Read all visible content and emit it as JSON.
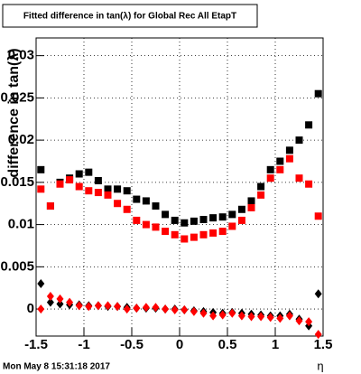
{
  "chart_data": {
    "type": "scatter",
    "title": "Fitted difference in tan(λ) for Global Rec All EtapT",
    "x_label": "η",
    "y_label": "difference in tan(λ)",
    "footer": "Mon May  8 15:31:18 2017",
    "x": [
      -1.45,
      -1.35,
      -1.25,
      -1.15,
      -1.05,
      -0.95,
      -0.85,
      -0.75,
      -0.65,
      -0.55,
      -0.45,
      -0.35,
      -0.25,
      -0.15,
      -0.05,
      0.05,
      0.15,
      0.25,
      0.35,
      0.45,
      0.55,
      0.65,
      0.75,
      0.85,
      0.95,
      1.05,
      1.15,
      1.25,
      1.35,
      1.45
    ],
    "series": [
      {
        "color": "#000000",
        "marker": "square",
        "values": [
          0.0165,
          0.0122,
          0.015,
          0.0155,
          0.016,
          0.0162,
          0.0152,
          0.0142,
          0.0142,
          0.014,
          0.013,
          0.0128,
          0.0122,
          0.0112,
          0.0105,
          0.0102,
          0.0104,
          0.0106,
          0.0108,
          0.0109,
          0.0112,
          0.0118,
          0.0128,
          0.0145,
          0.0165,
          0.0175,
          0.0188,
          0.02,
          0.0218,
          0.0255
        ]
      },
      {
        "color": "#ff0000",
        "marker": "square",
        "values": [
          0.0142,
          0.0122,
          0.0148,
          0.0153,
          0.0145,
          0.014,
          0.0138,
          0.0135,
          0.0125,
          0.0118,
          0.0105,
          0.01,
          0.0097,
          0.0092,
          0.0088,
          0.0083,
          0.0085,
          0.0088,
          0.009,
          0.0092,
          0.0098,
          0.0105,
          0.012,
          0.0135,
          0.0155,
          0.0165,
          0.0178,
          0.0155,
          0.0148,
          0.011
        ]
      },
      {
        "color": "#000000",
        "marker": "diamond",
        "values": [
          0.003,
          0.0008,
          0.0006,
          0.0005,
          0.0005,
          0.0004,
          0.0004,
          0.0003,
          0.0003,
          0.0002,
          0.0001,
          0.0001,
          0.0001,
          0.0,
          0.0,
          -0.0001,
          -0.0002,
          -0.0003,
          -0.0004,
          -0.0005,
          -0.0004,
          -0.0005,
          -0.0006,
          -0.0007,
          -0.0008,
          -0.0008,
          -0.0006,
          -0.0012,
          -0.002,
          0.0018
        ]
      },
      {
        "color": "#ff0000",
        "marker": "diamond",
        "values": [
          0.0,
          0.0015,
          0.0012,
          0.0008,
          0.0004,
          0.0003,
          0.0004,
          0.0004,
          0.0003,
          0.0,
          0.0001,
          0.0002,
          0.0002,
          0.0,
          -0.0001,
          -0.0001,
          -0.0003,
          -0.0005,
          -0.0008,
          -0.0007,
          -0.0005,
          -0.0008,
          -0.0009,
          -0.0009,
          -0.001,
          -0.0011,
          -0.0008,
          -0.0014,
          -0.0015,
          -0.003
        ]
      }
    ],
    "xlim": [
      -1.5,
      1.5
    ],
    "xticks": [
      -1.5,
      -1,
      -0.5,
      0,
      0.5,
      1,
      1.5
    ],
    "ylim": [
      -0.0032,
      0.0321
    ],
    "yticks": [
      0,
      0.005,
      0.01,
      0.015,
      0.02,
      0.025,
      0.03
    ],
    "grid": true
  }
}
